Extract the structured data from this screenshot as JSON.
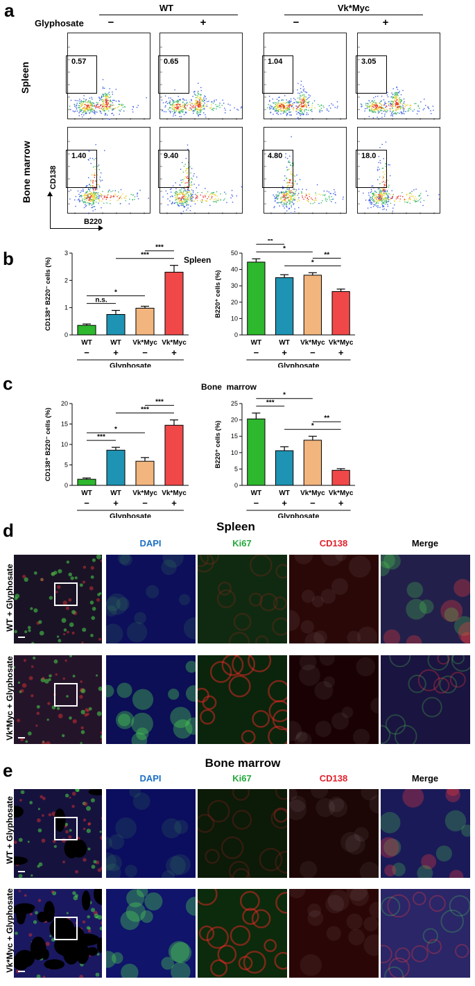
{
  "panel_a": {
    "letter": "a",
    "groups": [
      "WT",
      "Vk*Myc"
    ],
    "treatment_label": "Glyphosate",
    "treatment_signs": [
      "−",
      "+",
      "−",
      "+"
    ],
    "rows": [
      "Spleen",
      "Bone marrow"
    ],
    "gate_values": [
      [
        "0.57",
        "0.65",
        "1.04",
        "3.05"
      ],
      [
        "1.40",
        "9.40",
        "4.80",
        "18.0"
      ]
    ],
    "y_axis": "CD138",
    "x_axis": "B220"
  },
  "panel_b": {
    "letter": "b",
    "tissue": "Spleen",
    "treatment_label": "Glyphosate",
    "charts": [
      {
        "type": "bar",
        "ylabel": "CD138⁺ B220⁻ cells (%)",
        "categories": [
          "WT",
          "WT",
          "Vk*Myc",
          "Vk*Myc"
        ],
        "signs": [
          "−",
          "+",
          "−",
          "+"
        ],
        "values": [
          0.35,
          0.75,
          0.98,
          2.3
        ],
        "errors": [
          0.05,
          0.15,
          0.07,
          0.25
        ],
        "ylim": [
          0,
          3
        ],
        "yticks": [
          "0",
          "1",
          "2",
          "3"
        ],
        "colors": [
          "#2db82d",
          "#1f93b3",
          "#f2b57e",
          "#f04848"
        ],
        "significance": [
          {
            "from": 0,
            "to": 1,
            "text": "n.s."
          },
          {
            "from": 0,
            "to": 2,
            "text": "*"
          },
          {
            "from": 1,
            "to": 3,
            "text": "***"
          },
          {
            "from": 2,
            "to": 3,
            "text": "***"
          }
        ]
      },
      {
        "type": "bar",
        "ylabel": "B220⁺ cells (%)",
        "categories": [
          "WT",
          "WT",
          "Vk*Myc",
          "Vk*Myc"
        ],
        "signs": [
          "−",
          "+",
          "−",
          "+"
        ],
        "values": [
          44.5,
          35,
          36.5,
          26.5
        ],
        "errors": [
          2,
          1.8,
          1.5,
          1.5
        ],
        "ylim": [
          0,
          50
        ],
        "yticks": [
          "0",
          "10",
          "20",
          "30",
          "40",
          "50"
        ],
        "colors": [
          "#2db82d",
          "#1f93b3",
          "#f2b57e",
          "#f04848"
        ],
        "significance": [
          {
            "from": 0,
            "to": 2,
            "text": "*"
          },
          {
            "from": 0,
            "to": 1,
            "text": "**"
          },
          {
            "from": 1,
            "to": 3,
            "text": "*"
          },
          {
            "from": 2,
            "to": 3,
            "text": "**"
          }
        ]
      }
    ]
  },
  "panel_c": {
    "letter": "c",
    "tissue": "Bone  marrow",
    "treatment_label": "Glyphosate",
    "charts": [
      {
        "type": "bar",
        "ylabel": "CD138⁺ B220⁻ cells (%)",
        "categories": [
          "WT",
          "WT",
          "Vk*Myc",
          "Vk*Myc"
        ],
        "signs": [
          "−",
          "+",
          "−",
          "+"
        ],
        "values": [
          1.5,
          8.6,
          5.9,
          14.7
        ],
        "errors": [
          0.3,
          0.7,
          0.9,
          1.3
        ],
        "ylim": [
          0,
          20
        ],
        "yticks": [
          "0",
          "5",
          "10",
          "15",
          "20"
        ],
        "colors": [
          "#2db82d",
          "#1f93b3",
          "#f2b57e",
          "#f04848"
        ],
        "significance": [
          {
            "from": 0,
            "to": 1,
            "text": "***"
          },
          {
            "from": 0,
            "to": 2,
            "text": "*"
          },
          {
            "from": 1,
            "to": 3,
            "text": "***"
          },
          {
            "from": 2,
            "to": 3,
            "text": "***"
          }
        ]
      },
      {
        "type": "bar",
        "ylabel": "B220⁺ cells (%)",
        "categories": [
          "WT",
          "WT",
          "Vk*Myc",
          "Vk*Myc"
        ],
        "signs": [
          "−",
          "+",
          "−",
          "+"
        ],
        "values": [
          20.3,
          10.6,
          13.8,
          4.6
        ],
        "errors": [
          1.8,
          1.2,
          1.2,
          0.5
        ],
        "ylim": [
          0,
          25
        ],
        "yticks": [
          "0",
          "5",
          "10",
          "15",
          "20",
          "25"
        ],
        "colors": [
          "#2db82d",
          "#1f93b3",
          "#f2b57e",
          "#f04848"
        ],
        "significance": [
          {
            "from": 0,
            "to": 1,
            "text": "***"
          },
          {
            "from": 0,
            "to": 2,
            "text": "*"
          },
          {
            "from": 1,
            "to": 3,
            "text": "*"
          },
          {
            "from": 2,
            "to": 3,
            "text": "**"
          }
        ]
      }
    ]
  },
  "panel_d": {
    "letter": "d",
    "title": "Spleen",
    "columns": [
      "DAPI",
      "Ki67",
      "CD138",
      "Merge"
    ],
    "column_colors": [
      "#1b6fc4",
      "#22a83a",
      "#e0202a",
      "#000000"
    ],
    "rows": [
      "WT + Glyphosate",
      "Vk*Myc + Glyphosate"
    ]
  },
  "panel_e": {
    "letter": "e",
    "title": "Bone marrow",
    "columns": [
      "DAPI",
      "Ki67",
      "CD138",
      "Merge"
    ],
    "column_colors": [
      "#1b6fc4",
      "#22a83a",
      "#e0202a",
      "#000000"
    ],
    "rows": [
      "WT + Glyphosate",
      "Vk*Myc + Glyphosate"
    ]
  }
}
